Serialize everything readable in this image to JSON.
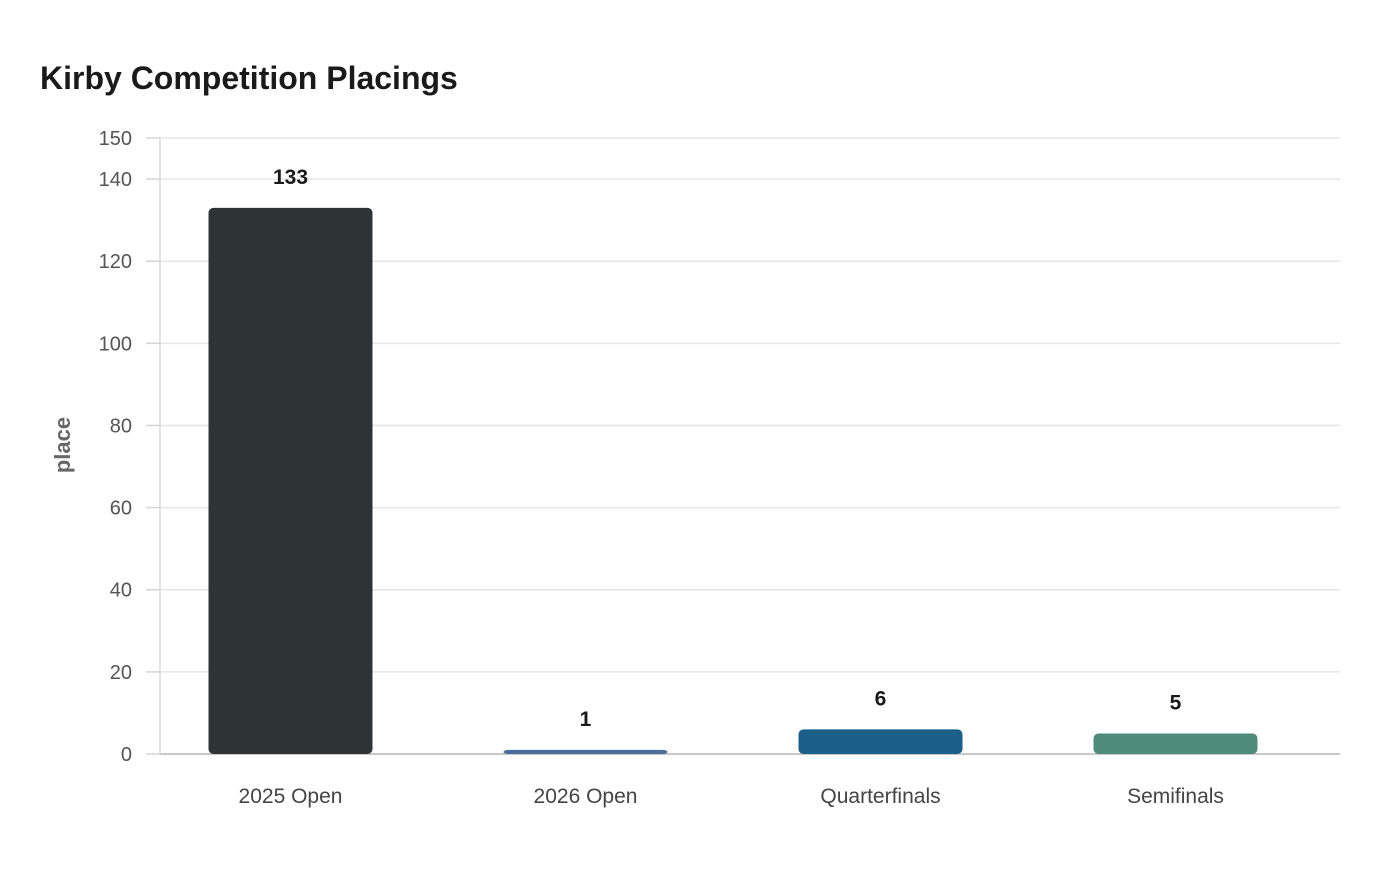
{
  "chart_data": {
    "type": "bar",
    "title": "Kirby Competition Placings",
    "xlabel": "",
    "ylabel": "place",
    "categories": [
      "2025 Open",
      "2026 Open",
      "Quarterfinals",
      "Semifinals"
    ],
    "values": [
      133,
      1,
      6,
      5
    ],
    "colors": [
      "#2e3436",
      "#4a6e9a",
      "#1a5f87",
      "#4e8b7b"
    ],
    "ylim": [
      0,
      150
    ],
    "yticks": [
      0,
      20,
      40,
      60,
      80,
      100,
      120,
      140,
      150
    ],
    "grid": true,
    "legend": "none"
  }
}
